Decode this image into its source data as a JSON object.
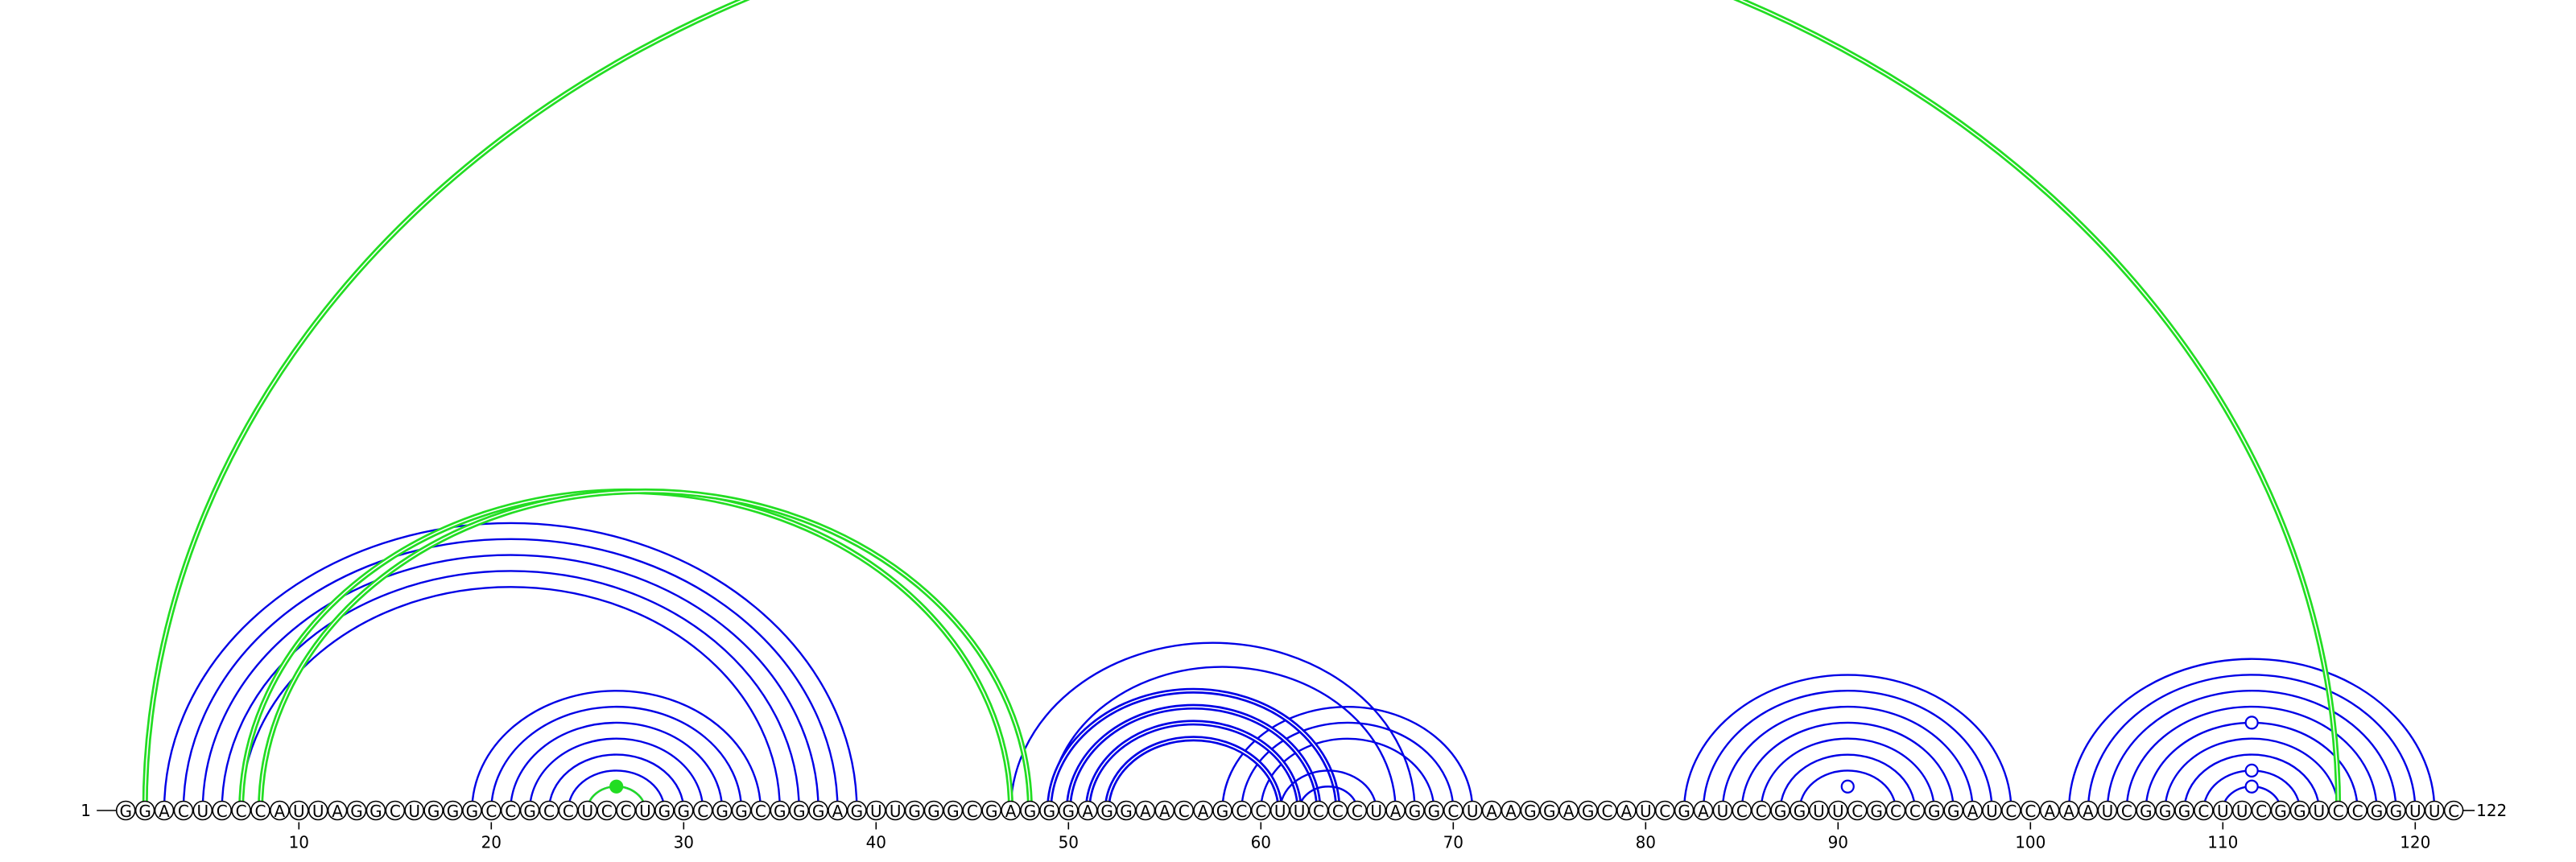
{
  "diagram": {
    "type": "rna-arc-diagram",
    "sequence": "GGACUCCCAUUAGGCUGGGCCGCCUCCUGGCGGCGGGAGUUGGGCGAGGGAGGAACAGCCUUCCCUAGGCUAAGGAGCAUCGAUCCGGUUCGCCGGAUCCAAAUCGGGCUUCGGUCCGGUUC",
    "start_label": "1",
    "end_label": "122",
    "tick_positions": [
      10,
      20,
      30,
      40,
      50,
      60,
      70,
      80,
      90,
      100,
      110,
      120
    ],
    "colors": {
      "primary_arc": "#0000e6",
      "secondary_arc": "#22dd22",
      "nucleotide_outline": "#000000",
      "text": "#000000"
    },
    "arc_groups": [
      {
        "color": "primary",
        "style": "single",
        "pairs": [
          [
            3,
            39
          ],
          [
            4,
            38
          ],
          [
            5,
            37
          ],
          [
            6,
            36
          ],
          [
            7,
            35
          ]
        ]
      },
      {
        "color": "primary",
        "style": "single",
        "pairs": [
          [
            19,
            34
          ],
          [
            20,
            33
          ],
          [
            21,
            32
          ],
          [
            22,
            31
          ],
          [
            23,
            30
          ],
          [
            24,
            29
          ],
          [
            25,
            28
          ]
        ]
      },
      {
        "color": "primary",
        "style": "single",
        "pairs": [
          [
            47,
            68
          ],
          [
            49,
            67
          ],
          [
            58,
            71
          ],
          [
            59,
            70
          ],
          [
            60,
            69
          ]
        ]
      },
      {
        "color": "primary",
        "style": "double",
        "pairs": [
          [
            49,
            64
          ],
          [
            50,
            63
          ],
          [
            51,
            62
          ],
          [
            52,
            61
          ]
        ]
      },
      {
        "color": "primary",
        "style": "single",
        "pairs": [
          [
            61,
            66
          ],
          [
            62,
            65
          ]
        ]
      },
      {
        "color": "primary",
        "style": "single",
        "pairs": [
          [
            82,
            99
          ],
          [
            83,
            98
          ],
          [
            84,
            97
          ],
          [
            85,
            96
          ],
          [
            86,
            95
          ],
          [
            87,
            94
          ],
          [
            88,
            93
          ]
        ]
      },
      {
        "color": "primary",
        "style": "single",
        "pairs": [
          [
            102,
            121
          ],
          [
            103,
            120
          ],
          [
            104,
            119
          ],
          [
            105,
            118
          ],
          [
            106,
            117
          ],
          [
            107,
            116
          ],
          [
            108,
            115
          ],
          [
            109,
            114
          ],
          [
            110,
            113
          ]
        ]
      },
      {
        "color": "secondary",
        "style": "double",
        "pairs": [
          [
            2,
            116
          ],
          [
            7,
            47
          ],
          [
            8,
            48
          ]
        ]
      },
      {
        "color": "secondary",
        "style": "single",
        "pairs": [
          [
            25,
            28
          ]
        ]
      }
    ],
    "markers": [
      {
        "position": 26.5,
        "level": 1,
        "filled": true,
        "color": "secondary"
      },
      {
        "position": 90.5,
        "level": 1,
        "filled": false,
        "color": "primary"
      },
      {
        "position": 111.5,
        "level": 1,
        "filled": false,
        "color": "primary"
      },
      {
        "position": 111.5,
        "level": 2,
        "filled": false,
        "color": "primary"
      },
      {
        "position": 111.5,
        "level": 5,
        "filled": false,
        "color": "primary"
      }
    ]
  }
}
